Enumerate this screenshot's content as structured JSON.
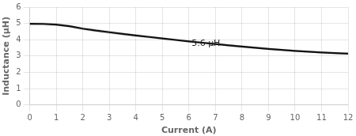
{
  "chart_data": {
    "type": "line",
    "xlabel": "Current (A)",
    "ylabel": "Inductance (μH)",
    "x": [
      0,
      0.5,
      1.0,
      1.5,
      2.0,
      2.5,
      3.0,
      3.5,
      4.0,
      4.5,
      5.0,
      5.5,
      6.0,
      6.5,
      7.0,
      7.5,
      8.0,
      8.5,
      9.0,
      9.5,
      10.0,
      10.5,
      11.0,
      11.5,
      12.0
    ],
    "series": [
      {
        "color": "#111111",
        "values": [
          4.98,
          4.97,
          4.93,
          4.83,
          4.68,
          4.56,
          4.46,
          4.36,
          4.26,
          4.17,
          4.08,
          3.99,
          3.9,
          3.82,
          3.74,
          3.66,
          3.58,
          3.51,
          3.44,
          3.38,
          3.32,
          3.27,
          3.22,
          3.18,
          3.15
        ]
      }
    ],
    "band": {
      "color": "#aaaaaa",
      "upper": [
        5.05,
        5.05,
        5.01,
        4.91,
        4.77,
        4.65,
        4.55,
        4.44,
        4.34,
        4.25,
        4.15,
        4.06,
        3.97,
        3.89,
        3.81,
        3.73,
        3.65,
        3.58,
        3.51,
        3.44,
        3.38,
        3.33,
        3.28,
        3.24,
        3.21
      ],
      "lower": [
        4.91,
        4.89,
        4.85,
        4.75,
        4.59,
        4.47,
        4.37,
        4.28,
        4.18,
        4.09,
        4.01,
        3.92,
        3.83,
        3.75,
        3.67,
        3.59,
        3.51,
        3.44,
        3.37,
        3.32,
        3.26,
        3.21,
        3.16,
        3.12,
        3.09
      ]
    },
    "annotations": [
      {
        "text": "5.6 μH",
        "x": 6.1,
        "y": 3.75
      }
    ],
    "xlim": [
      0,
      12
    ],
    "ylim": [
      0,
      6
    ],
    "xticks": [
      0,
      1,
      2,
      3,
      4,
      5,
      6,
      7,
      8,
      9,
      10,
      11,
      12
    ],
    "yticks": [
      0,
      1,
      2,
      3,
      4,
      5,
      6
    ],
    "grid": true
  }
}
